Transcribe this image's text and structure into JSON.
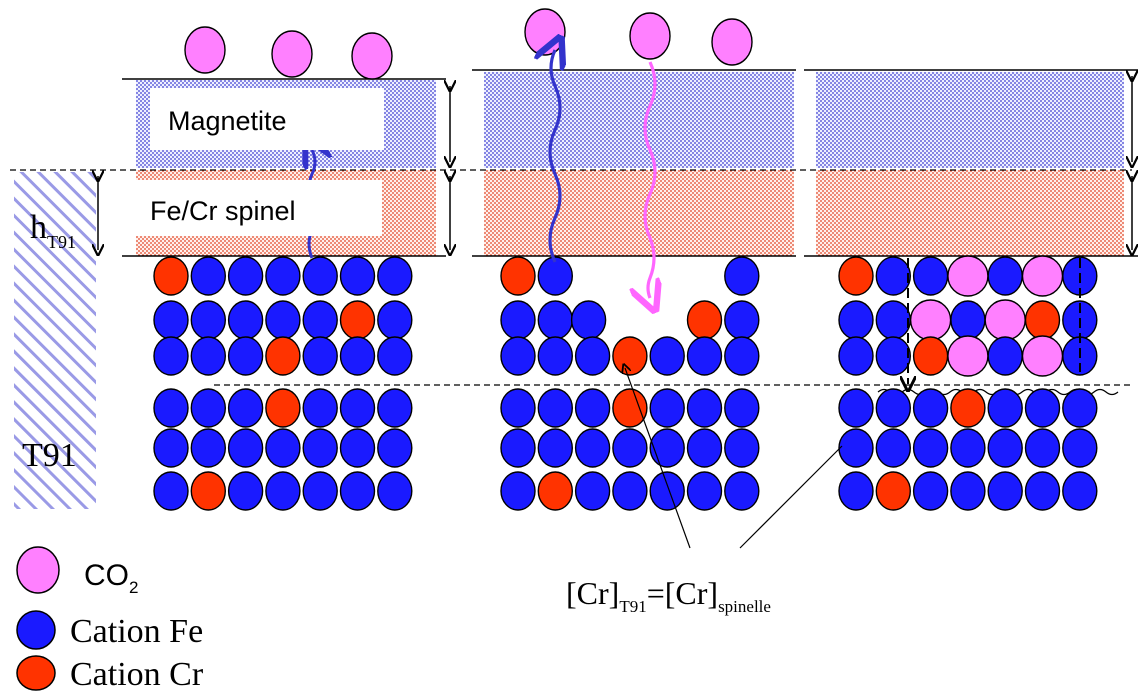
{
  "labels": {
    "magnetite": "Magnetite",
    "spinel": "Fe/Cr spinel",
    "h_main": "h",
    "h_sub": "T91",
    "substrate": "T91"
  },
  "equation": {
    "open_bracket": "[Cr]",
    "sub_left": "T91",
    "equals": "=[Cr]",
    "sub_right": "spinelle"
  },
  "legend": [
    {
      "key": "co2",
      "main": "CO",
      "sub": "2",
      "color": "#ff80ff"
    },
    {
      "key": "fe",
      "main": "Cation Fe",
      "sub": "",
      "color": "#0000ff"
    },
    {
      "key": "cr",
      "main": "Cation Cr",
      "sub": "",
      "color": "#ff3300"
    }
  ],
  "colors": {
    "co2": "#ff80ff",
    "fe": "#1a1aff",
    "cr": "#ff3300",
    "magnetite_dots": "#3a3ad0",
    "spinel_dots": "#e04020",
    "blue_arrow": "#3333cc",
    "pink_arrow": "#ff66ff",
    "hatch": "#8080e0"
  }
}
